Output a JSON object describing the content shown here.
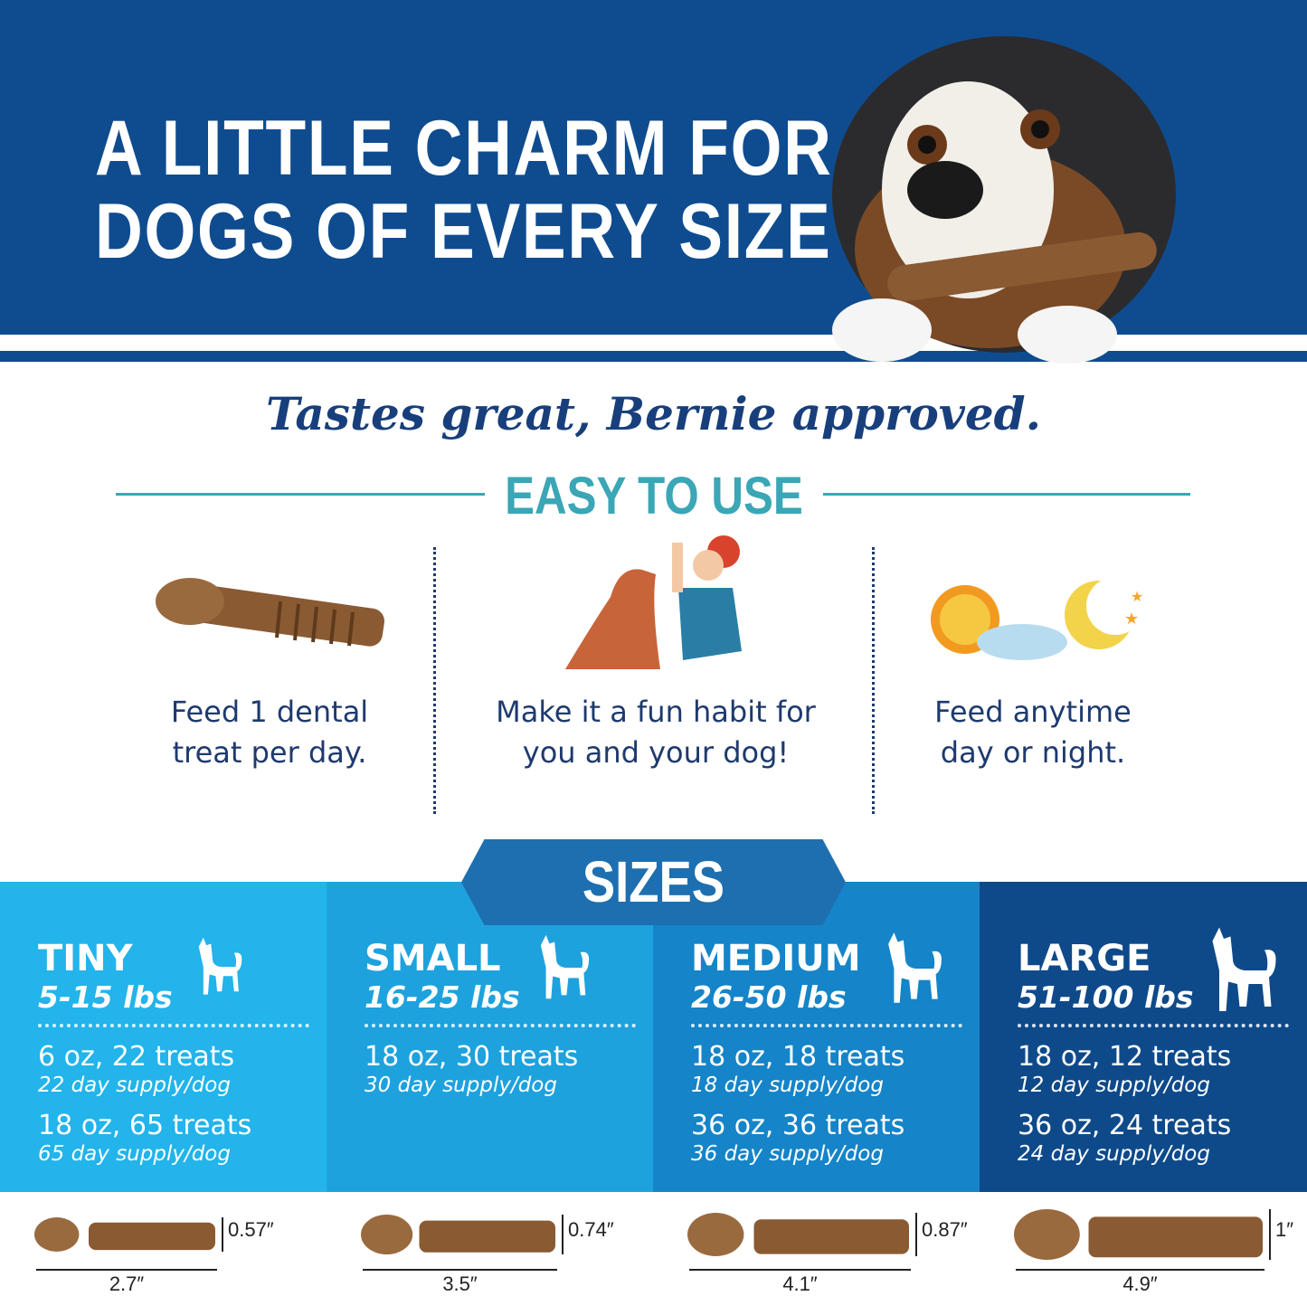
{
  "header": {
    "headline_line1": "A LITTLE CHARM FOR",
    "headline_line2": "DOGS OF EVERY SIZE"
  },
  "tagline": "Tastes great, Bernie approved.",
  "easy_to_use": {
    "title": "EASY TO USE",
    "features": [
      {
        "icon": "dental-treat-icon",
        "line1": "Feed 1 dental",
        "line2": "treat per day."
      },
      {
        "icon": "high-five-icon",
        "line1": "Make it a fun habit for",
        "line2": "you and your dog!"
      },
      {
        "icon": "sun-moon-icon",
        "line1": "Feed anytime",
        "line2": "day or night."
      }
    ]
  },
  "sizes": {
    "title": "SIZES",
    "columns": [
      {
        "name": "TINY",
        "weight": "5-15 lbs",
        "color": "#22b4ea",
        "options": [
          {
            "main": "6 oz, 22 treats",
            "supply": "22 day supply/dog"
          },
          {
            "main": "18 oz, 65 treats",
            "supply": "65 day supply/dog"
          }
        ],
        "length": "2.7″",
        "height": "0.57″"
      },
      {
        "name": "SMALL",
        "weight": "16-25 lbs",
        "color": "#1ea2dd",
        "options": [
          {
            "main": "18 oz, 30 treats",
            "supply": "30 day supply/dog"
          }
        ],
        "length": "3.5″",
        "height": "0.74″"
      },
      {
        "name": "MEDIUM",
        "weight": "26-50 lbs",
        "color": "#1584c8",
        "options": [
          {
            "main": "18 oz, 18 treats",
            "supply": "18 day supply/dog"
          },
          {
            "main": "36 oz, 36 treats",
            "supply": "36 day supply/dog"
          }
        ],
        "length": "4.1″",
        "height": "0.87″"
      },
      {
        "name": "LARGE",
        "weight": "51-100 lbs",
        "color": "#0e4a8a",
        "options": [
          {
            "main": "18 oz, 12 treats",
            "supply": "12 day supply/dog"
          },
          {
            "main": "36 oz, 24 treats",
            "supply": "24 day supply/dog"
          }
        ],
        "length": "4.9″",
        "height": "1″"
      }
    ]
  },
  "colors": {
    "banner": "#0f4c8f",
    "accent_teal": "#3aa6b6",
    "text_navy": "#1e3a6e",
    "treat_brown": "#8a5a33"
  }
}
